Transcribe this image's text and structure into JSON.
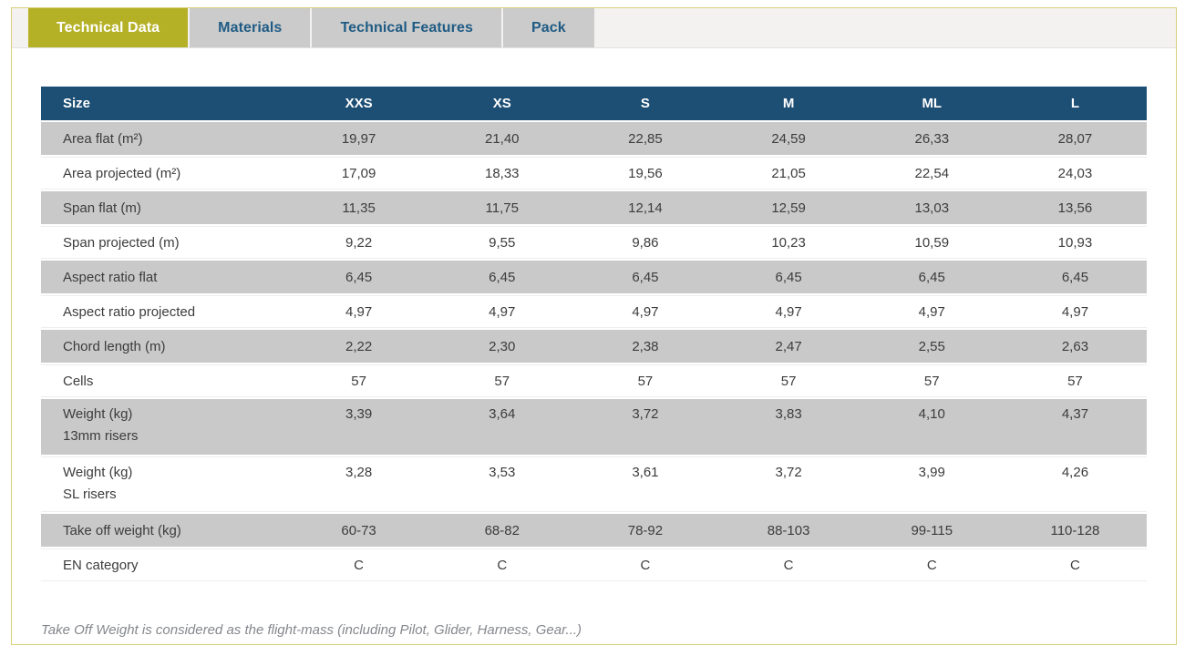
{
  "tabs": [
    {
      "label": "Technical Data",
      "active": true
    },
    {
      "label": "Materials",
      "active": false
    },
    {
      "label": "Technical Features",
      "active": false
    },
    {
      "label": "Pack",
      "active": false
    }
  ],
  "table": {
    "columns": [
      "Size",
      "XXS",
      "XS",
      "S",
      "M",
      "ML",
      "L"
    ],
    "rows": [
      {
        "label": "Area flat (m²)",
        "sublabel": "",
        "values": [
          "19,97",
          "21,40",
          "22,85",
          "24,59",
          "26,33",
          "28,07"
        ]
      },
      {
        "label": "Area projected (m²)",
        "sublabel": "",
        "values": [
          "17,09",
          "18,33",
          "19,56",
          "21,05",
          "22,54",
          "24,03"
        ]
      },
      {
        "label": "Span flat (m)",
        "sublabel": "",
        "values": [
          "11,35",
          "11,75",
          "12,14",
          "12,59",
          "13,03",
          "13,56"
        ]
      },
      {
        "label": "Span projected (m)",
        "sublabel": "",
        "values": [
          "9,22",
          "9,55",
          "9,86",
          "10,23",
          "10,59",
          "10,93"
        ]
      },
      {
        "label": "Aspect ratio flat",
        "sublabel": "",
        "values": [
          "6,45",
          "6,45",
          "6,45",
          "6,45",
          "6,45",
          "6,45"
        ]
      },
      {
        "label": "Aspect ratio projected",
        "sublabel": "",
        "values": [
          "4,97",
          "4,97",
          "4,97",
          "4,97",
          "4,97",
          "4,97"
        ]
      },
      {
        "label": "Chord length (m)",
        "sublabel": "",
        "values": [
          "2,22",
          "2,30",
          "2,38",
          "2,47",
          "2,55",
          "2,63"
        ]
      },
      {
        "label": "Cells",
        "sublabel": "",
        "values": [
          "57",
          "57",
          "57",
          "57",
          "57",
          "57"
        ]
      },
      {
        "label": "Weight (kg)",
        "sublabel": "13mm risers",
        "values": [
          "3,39",
          "3,64",
          "3,72",
          "3,83",
          "4,10",
          "4,37"
        ]
      },
      {
        "label": "Weight (kg)",
        "sublabel": "SL risers",
        "values": [
          "3,28",
          "3,53",
          "3,61",
          "3,72",
          "3,99",
          "4,26"
        ]
      },
      {
        "label": "Take off weight (kg)",
        "sublabel": "",
        "values": [
          "60-73",
          "68-82",
          "78-92",
          "88-103",
          "99-115",
          "110-128"
        ]
      },
      {
        "label": "EN category",
        "sublabel": "",
        "values": [
          "C",
          "C",
          "C",
          "C",
          "C",
          "C"
        ]
      }
    ]
  },
  "footnote": "Take Off Weight is considered as the flight-mass (including Pilot, Glider, Harness, Gear...)",
  "colors": {
    "accent_olive": "#b5b127",
    "header_blue": "#1d4e74",
    "row_gray": "#c9c9c9",
    "inactive_tab_gray": "#cbcbcb",
    "tab_text_blue": "#1f5b84",
    "frame_border_olive": "#d9cf7c"
  }
}
